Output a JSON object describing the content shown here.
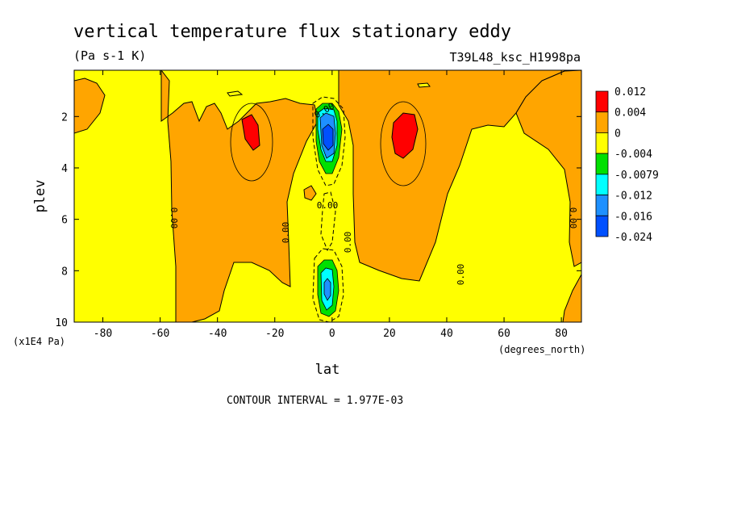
{
  "chart_data": {
    "type": "contour",
    "title": "vertical temperature flux stationary eddy",
    "units": "(Pa s-1 K)",
    "dataset": "T39L48_ksc_H1998pa",
    "xlabel": "lat",
    "x_units": "(degrees_north)",
    "ylabel": "plev",
    "y_units": "(x1E4 Pa)",
    "xlim": [
      -90,
      87
    ],
    "ylim": [
      10,
      0.2
    ],
    "x_ticks": [
      "-80",
      "-60",
      "-40",
      "-20",
      "0",
      "20",
      "40",
      "60",
      "80"
    ],
    "x_tick_values": [
      -80,
      -60,
      -40,
      -20,
      0,
      20,
      40,
      60,
      80
    ],
    "y_ticks": [
      "2",
      "4",
      "6",
      "8",
      "10"
    ],
    "y_tick_values": [
      2,
      4,
      6,
      8,
      10
    ],
    "contour_interval": "CONTOUR INTERVAL = 1.977E-03",
    "contour_labels": [
      "0.00",
      "0.00",
      "0.00",
      "0.00",
      "0.00",
      "0.00",
      "0.00"
    ],
    "colorbar": {
      "levels": [
        "0.012",
        "0.004",
        "0",
        "-0.004",
        "-0.0079",
        "-0.012",
        "-0.016",
        "-0.024"
      ],
      "colors": [
        "#ff0000",
        "#ffa500",
        "#ffff00",
        "#00e000",
        "#00ffff",
        "#1e90ff",
        "#0050ff"
      ]
    },
    "regions": {
      "positive_maxima_lat": [
        -26,
        27
      ],
      "positive_maxima_plev": [
        2.6,
        2.6
      ],
      "negative_minima_lat": [
        0,
        0
      ],
      "negative_minima_plev": [
        2.8,
        8.9
      ]
    }
  }
}
